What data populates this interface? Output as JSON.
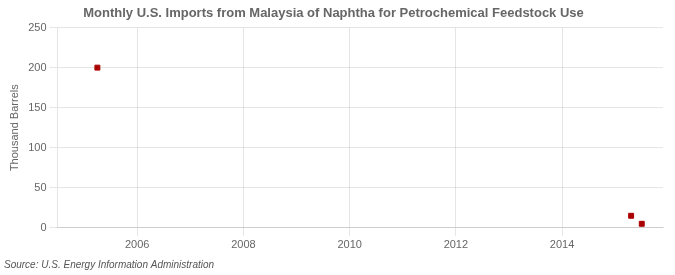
{
  "chart_data": {
    "type": "scatter",
    "title": "Monthly U.S. Imports from Malaysia of Naphtha for Petrochemical Feedstock Use",
    "ylabel": "Thousand Barrels",
    "annotations": [
      "Source: U.S. Energy Information Administration"
    ],
    "x": [
      2005.25,
      2015.3,
      2015.5
    ],
    "values": [
      200,
      15,
      5
    ],
    "color": "#aa0000",
    "marker": "square",
    "xlim": [
      2004.5,
      2015.9
    ],
    "ylim": [
      0,
      250
    ],
    "xticks": [
      2006,
      2008,
      2010,
      2012,
      2014
    ],
    "yticks": [
      0,
      50,
      100,
      150,
      200,
      250
    ],
    "grid": true
  }
}
